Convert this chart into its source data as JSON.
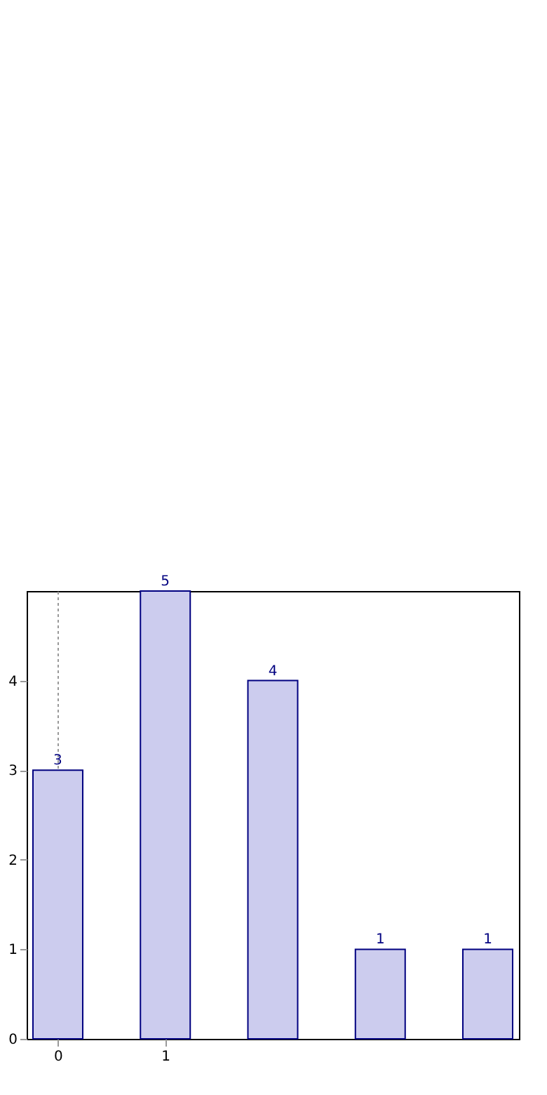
{
  "chart_data": {
    "type": "bar",
    "x": [
      0,
      1,
      2,
      3,
      4
    ],
    "values": [
      3,
      5,
      4,
      1,
      1
    ],
    "color": "#ccccee",
    "xlim": [
      -0.225,
      4.225
    ],
    "xticks": [
      0,
      1
    ],
    "ylim": [
      0,
      5
    ],
    "yticks": [
      0,
      1,
      2,
      3,
      4
    ],
    "grid": "x",
    "data_labels": true
  }
}
